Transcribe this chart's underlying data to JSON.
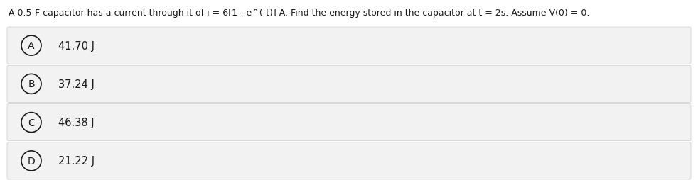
{
  "question": "A 0.5-F capacitor has a current through it of i = 6[1 - e^(-t)] A. Find the energy stored in the capacitor at t = 2s. Assume V(0) = 0.",
  "options": [
    {
      "label": "A",
      "text": "41.70 J"
    },
    {
      "label": "B",
      "text": "37.24 J"
    },
    {
      "label": "C",
      "text": "46.38 J"
    },
    {
      "label": "D",
      "text": "21.22 J"
    }
  ],
  "bg_color": "#ffffff",
  "option_bg_color": "#f2f2f2",
  "option_border_color": "#cccccc",
  "text_color": "#1a1a1a",
  "circle_color": "#1a1a1a",
  "question_fontsize": 9.0,
  "option_fontsize": 10.5,
  "label_fontsize": 10.0
}
